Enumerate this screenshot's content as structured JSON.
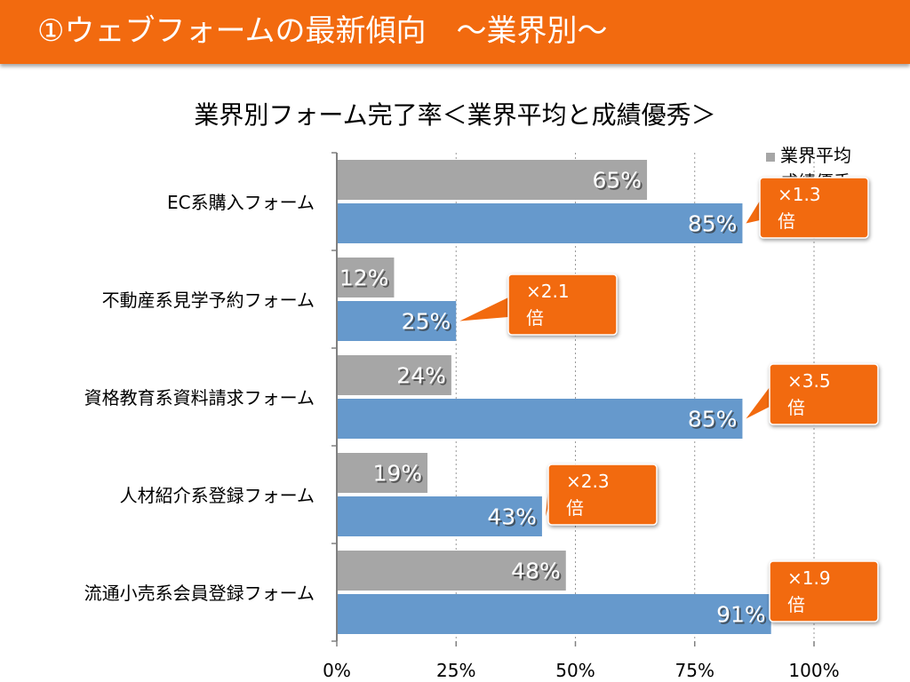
{
  "header": {
    "title": "①ウェブフォームの最新傾向　～業界別～"
  },
  "chart_data": {
    "type": "bar",
    "orientation": "horizontal",
    "title": "業界別フォーム完了率＜業界平均と成績優秀＞",
    "categories": [
      "EC系購入フォーム",
      "不動産系見学予約フォーム",
      "資格教育系資料請求フォーム",
      "人材紹介系登録フォーム",
      "流通小売系会員登録フォーム"
    ],
    "series": [
      {
        "name": "業界平均",
        "values": [
          65,
          12,
          24,
          19,
          48
        ],
        "color": "#a6a6a6"
      },
      {
        "name": "成績優秀",
        "values": [
          85,
          25,
          85,
          43,
          91
        ],
        "color": "#6699cc"
      }
    ],
    "value_labels": {
      "業界平均": [
        "65%",
        "12%",
        "24%",
        "19%",
        "48%"
      ],
      "成績優秀": [
        "85%",
        "25%",
        "85%",
        "43%",
        "91%"
      ]
    },
    "xlim": [
      0,
      100
    ],
    "xticks": [
      "0%",
      "25%",
      "50%",
      "75%",
      "100%"
    ],
    "grid": true,
    "legend_position": "top-right",
    "annotations": [
      "×1.3\n倍",
      "×2.1\n倍",
      "×3.5\n倍",
      "×2.3\n倍",
      "×1.9\n倍"
    ],
    "annotation_color": "#f26a0f"
  }
}
